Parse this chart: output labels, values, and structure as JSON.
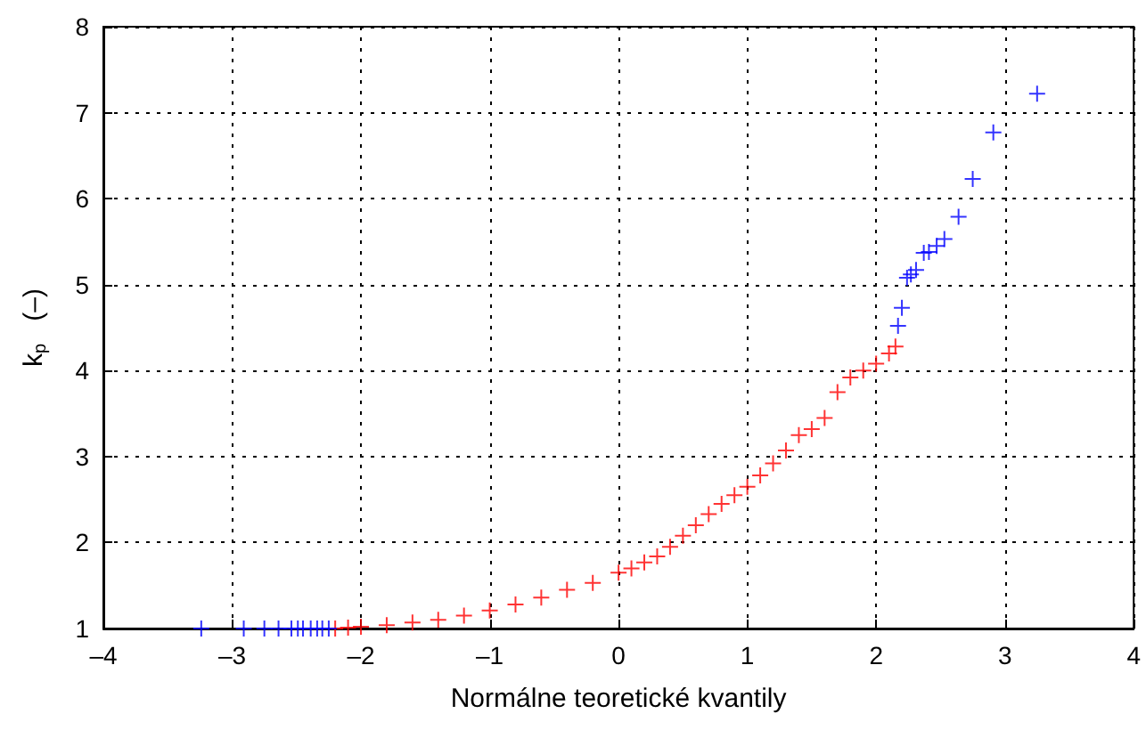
{
  "chart_data": {
    "type": "scatter",
    "xlabel": "Normálne teoretické kvantily",
    "ylabel": "k$_{p}$   (–)",
    "xlim": [
      -4,
      4
    ],
    "xticks": [
      {
        "value": -4,
        "label": "–4"
      },
      {
        "value": -3,
        "label": "–3"
      },
      {
        "value": -2,
        "label": "–2"
      },
      {
        "value": -1,
        "label": "–1"
      },
      0,
      1,
      2,
      3,
      4
    ],
    "ylim": [
      1,
      8
    ],
    "yticks": [
      1,
      2,
      3,
      4,
      5,
      6,
      7,
      8
    ],
    "grid": true,
    "marker": "cross",
    "series": [
      {
        "color": "#ff0000",
        "x": [
          -2.2,
          -2.1,
          -2.0,
          -1.8,
          -1.6,
          -1.4,
          -1.2,
          -1.0,
          -0.8,
          -0.6,
          -0.4,
          -0.2,
          0,
          0.1,
          0.2,
          0.3,
          0.4,
          0.5,
          0.6,
          0.7,
          0.8,
          0.9,
          1.0,
          1.1,
          1.2,
          1.3,
          1.4,
          1.5,
          1.6,
          1.7,
          1.8,
          1.9,
          2.0,
          2.1,
          2.15
        ],
        "values": [
          1.0,
          1.01,
          1.02,
          1.04,
          1.07,
          1.1,
          1.15,
          1.21,
          1.28,
          1.36,
          1.45,
          1.53,
          1.65,
          1.7,
          1.77,
          1.84,
          1.95,
          2.08,
          2.2,
          2.33,
          2.45,
          2.55,
          2.65,
          2.78,
          2.92,
          3.07,
          3.25,
          3.32,
          3.45,
          3.75,
          3.92,
          4.0,
          4.08,
          4.2,
          4.28
        ]
      },
      {
        "color": "#0000ff",
        "x": [
          -3.24,
          -2.91,
          -2.75,
          -2.64,
          -2.54,
          -2.49,
          -2.45,
          -2.39,
          -2.34,
          -2.3,
          -2.25
        ],
        "values": [
          1,
          1,
          1,
          1,
          1,
          1,
          1,
          1,
          1,
          1,
          1
        ]
      },
      {
        "color": "#0000ff",
        "x": [
          2.17,
          2.2,
          2.24,
          2.27,
          2.31,
          2.37,
          2.41,
          2.47,
          2.53,
          2.64,
          2.75,
          2.91,
          3.25
        ],
        "values": [
          4.52,
          4.73,
          5.08,
          5.12,
          5.17,
          5.37,
          5.38,
          5.45,
          5.53,
          5.79,
          6.23,
          6.77,
          7.22
        ]
      }
    ]
  }
}
